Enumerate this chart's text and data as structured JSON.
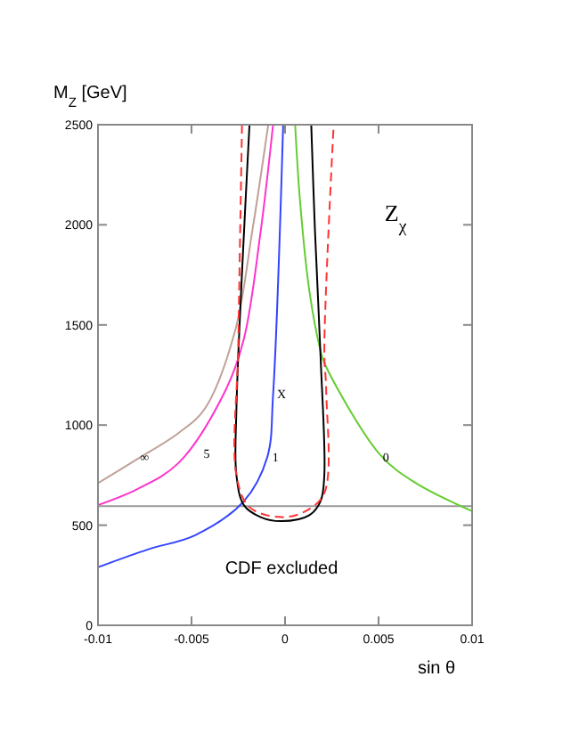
{
  "chart_data": {
    "type": "line",
    "xlabel": "sin θ",
    "ylabel": "M$_{Z}$ [GeV]",
    "xlim": [
      -0.01,
      0.01
    ],
    "xticks": [
      -0.01,
      -0.005,
      0,
      0.005,
      0.01
    ],
    "ylim": [
      0,
      2500
    ],
    "yticks": [
      0,
      500,
      1000,
      1500,
      2000,
      2500
    ],
    "grid": false,
    "series": [
      {
        "color": "#c0a098",
        "x": [
          -0.01,
          -0.0079,
          -0.0057,
          -0.0043,
          -0.0027,
          -0.00175,
          -0.0009
        ],
        "values": [
          710,
          830,
          960,
          1080,
          1460,
          1970,
          2500
        ]
      },
      {
        "color": "#ff33cc",
        "x": [
          -0.01,
          -0.0079,
          -0.0057,
          -0.0032,
          -0.0022,
          -0.0013,
          -0.00064
        ],
        "values": [
          600,
          680,
          810,
          1170,
          1430,
          1970,
          2500
        ]
      },
      {
        "color": "#3344ff",
        "x": [
          -0.01,
          -0.0073,
          -0.0048,
          -0.0022,
          -0.00095,
          -0.00064,
          -0.0001
        ],
        "values": [
          290,
          380,
          450,
          620,
          840,
          1150,
          2500
        ]
      },
      {
        "color": "#66cc33",
        "x": [
          0.00054,
          0.0008,
          0.0013,
          0.0019,
          0.0021,
          0.0051,
          0.007,
          0.01
        ],
        "values": [
          2500,
          2120,
          1670,
          1370,
          1310,
          850,
          710,
          570
        ]
      },
      {
        "color": "#000000",
        "x": [
          -0.0019,
          -0.0026,
          -0.0026,
          -0.0022,
          -0.0013,
          -0.0002,
          0.0013,
          0.0019,
          0.0021,
          0.0019,
          0.0016,
          0.0014
        ],
        "values": [
          2500,
          1080,
          750,
          600,
          540,
          520,
          550,
          620,
          750,
          1340,
          1970,
          2500
        ]
      },
      {
        "color": "#ff3333",
        "line_style": "dashed",
        "x": [
          -0.0023,
          -0.0025,
          -0.0026,
          -0.0019,
          -0.0002,
          0.0011,
          0.0021,
          0.0022,
          0.0021,
          0.0026
        ],
        "values": [
          2500,
          1400,
          750,
          590,
          540,
          570,
          660,
          1170,
          1370,
          2500
        ]
      }
    ],
    "ref_lines": [
      {
        "axis": "y",
        "value": 595,
        "color": "#999999"
      }
    ],
    "annotations": [
      {
        "text": "∞",
        "x": -0.0077,
        "y": 845
      },
      "5",
      {
        "text": "1",
        "x": -0.0007,
        "y": 845
      },
      {
        "text": "0",
        "x": 0.0052,
        "y": 845
      },
      {
        "text": "X",
        "x": -0.00038,
        "y": 1160
      },
      "Z$_{χ}$",
      "CDF excluded"
    ]
  }
}
